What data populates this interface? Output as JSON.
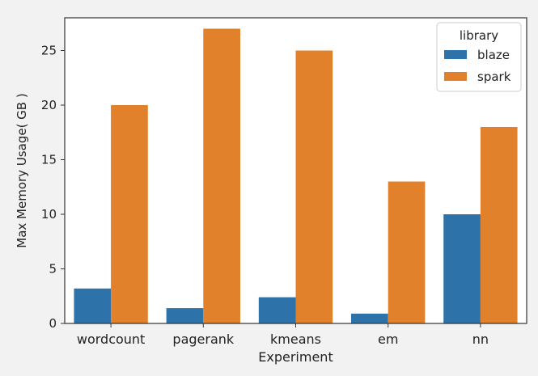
{
  "chart_data": {
    "type": "bar",
    "title": "",
    "xlabel": "Experiment",
    "ylabel": "Max Memory Usage( GB )",
    "categories": [
      "wordcount",
      "pagerank",
      "kmeans",
      "em",
      "nn"
    ],
    "series": [
      {
        "name": "blaze",
        "color": "#2e72aa",
        "values": [
          3.2,
          1.4,
          2.4,
          0.9,
          10.0
        ]
      },
      {
        "name": "spark",
        "color": "#e1812c",
        "values": [
          20,
          27,
          25,
          13,
          18
        ]
      }
    ],
    "ylim": [
      0,
      28
    ],
    "yticks": [
      "0",
      "5",
      "10",
      "15",
      "20",
      "25"
    ],
    "grid": false,
    "legend": {
      "title": "library",
      "position": "top-right"
    }
  }
}
